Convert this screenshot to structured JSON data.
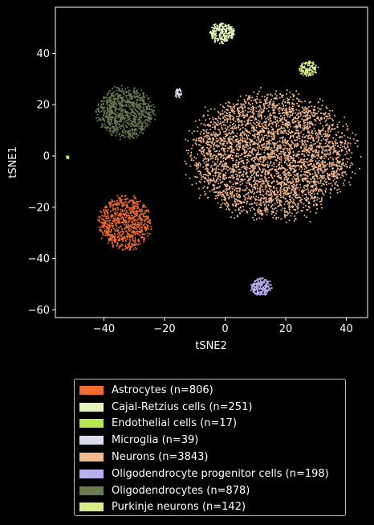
{
  "chart_data": {
    "type": "scatter",
    "title": "",
    "xlabel": "tSNE2",
    "ylabel": "tSNE1",
    "xlim": [
      -56,
      47
    ],
    "ylim": [
      -63,
      58
    ],
    "xticks": [
      -40,
      -20,
      0,
      20,
      40
    ],
    "yticks": [
      -60,
      -40,
      -20,
      0,
      20,
      40
    ],
    "xtick_labels": [
      "−40",
      "−20",
      "0",
      "20",
      "40"
    ],
    "ytick_labels": [
      "−60",
      "−40",
      "−20",
      "0",
      "20",
      "40"
    ],
    "grid": false,
    "legend_position": "below",
    "series": [
      {
        "name": "Astrocytes (n=806)",
        "color": "#f26b2f",
        "n": 806,
        "clusters": [
          {
            "center": [
              -33,
              -26
            ],
            "radius": [
              8.5,
              10.5
            ]
          }
        ]
      },
      {
        "name": "Cajal-Retzius cells (n=251)",
        "color": "#e4f5b8",
        "n": 251,
        "clusters": [
          {
            "center": [
              -1,
              48
            ],
            "radius": [
              4,
              4
            ]
          }
        ]
      },
      {
        "name": "Endothelial cells (n=17)",
        "color": "#b6e84f",
        "n": 17,
        "clusters": [
          {
            "center": [
              -52,
              -0.5
            ],
            "radius": [
              0.6,
              0.6
            ]
          }
        ]
      },
      {
        "name": "Microglia (n=39)",
        "color": "#dcdcf0",
        "n": 39,
        "clusters": [
          {
            "center": [
              -15.5,
              24.5
            ],
            "radius": [
              1.2,
              1.8
            ]
          }
        ]
      },
      {
        "name": "Neurons (n=3843)",
        "color": "#f3b98e",
        "n": 3843,
        "clusters": [
          {
            "center": [
              15,
              0
            ],
            "radius": [
              26,
              24
            ]
          }
        ]
      },
      {
        "name": "Oligodendrocyte progenitor cells (n=198)",
        "color": "#b8b0ee",
        "n": 198,
        "clusters": [
          {
            "center": [
              12,
              -51
            ],
            "radius": [
              3.5,
              3.5
            ]
          }
        ]
      },
      {
        "name": "Oligodendrocytes (n=878)",
        "color": "#6b7a4f",
        "n": 878,
        "clusters": [
          {
            "center": [
              -33,
              17
            ],
            "radius": [
              9.5,
              10
            ]
          }
        ]
      },
      {
        "name": "Purkinje neurons (n=142)",
        "color": "#d8ec87",
        "n": 142,
        "clusters": [
          {
            "center": [
              27.5,
              34
            ],
            "radius": [
              3,
              3
            ]
          }
        ]
      }
    ]
  }
}
